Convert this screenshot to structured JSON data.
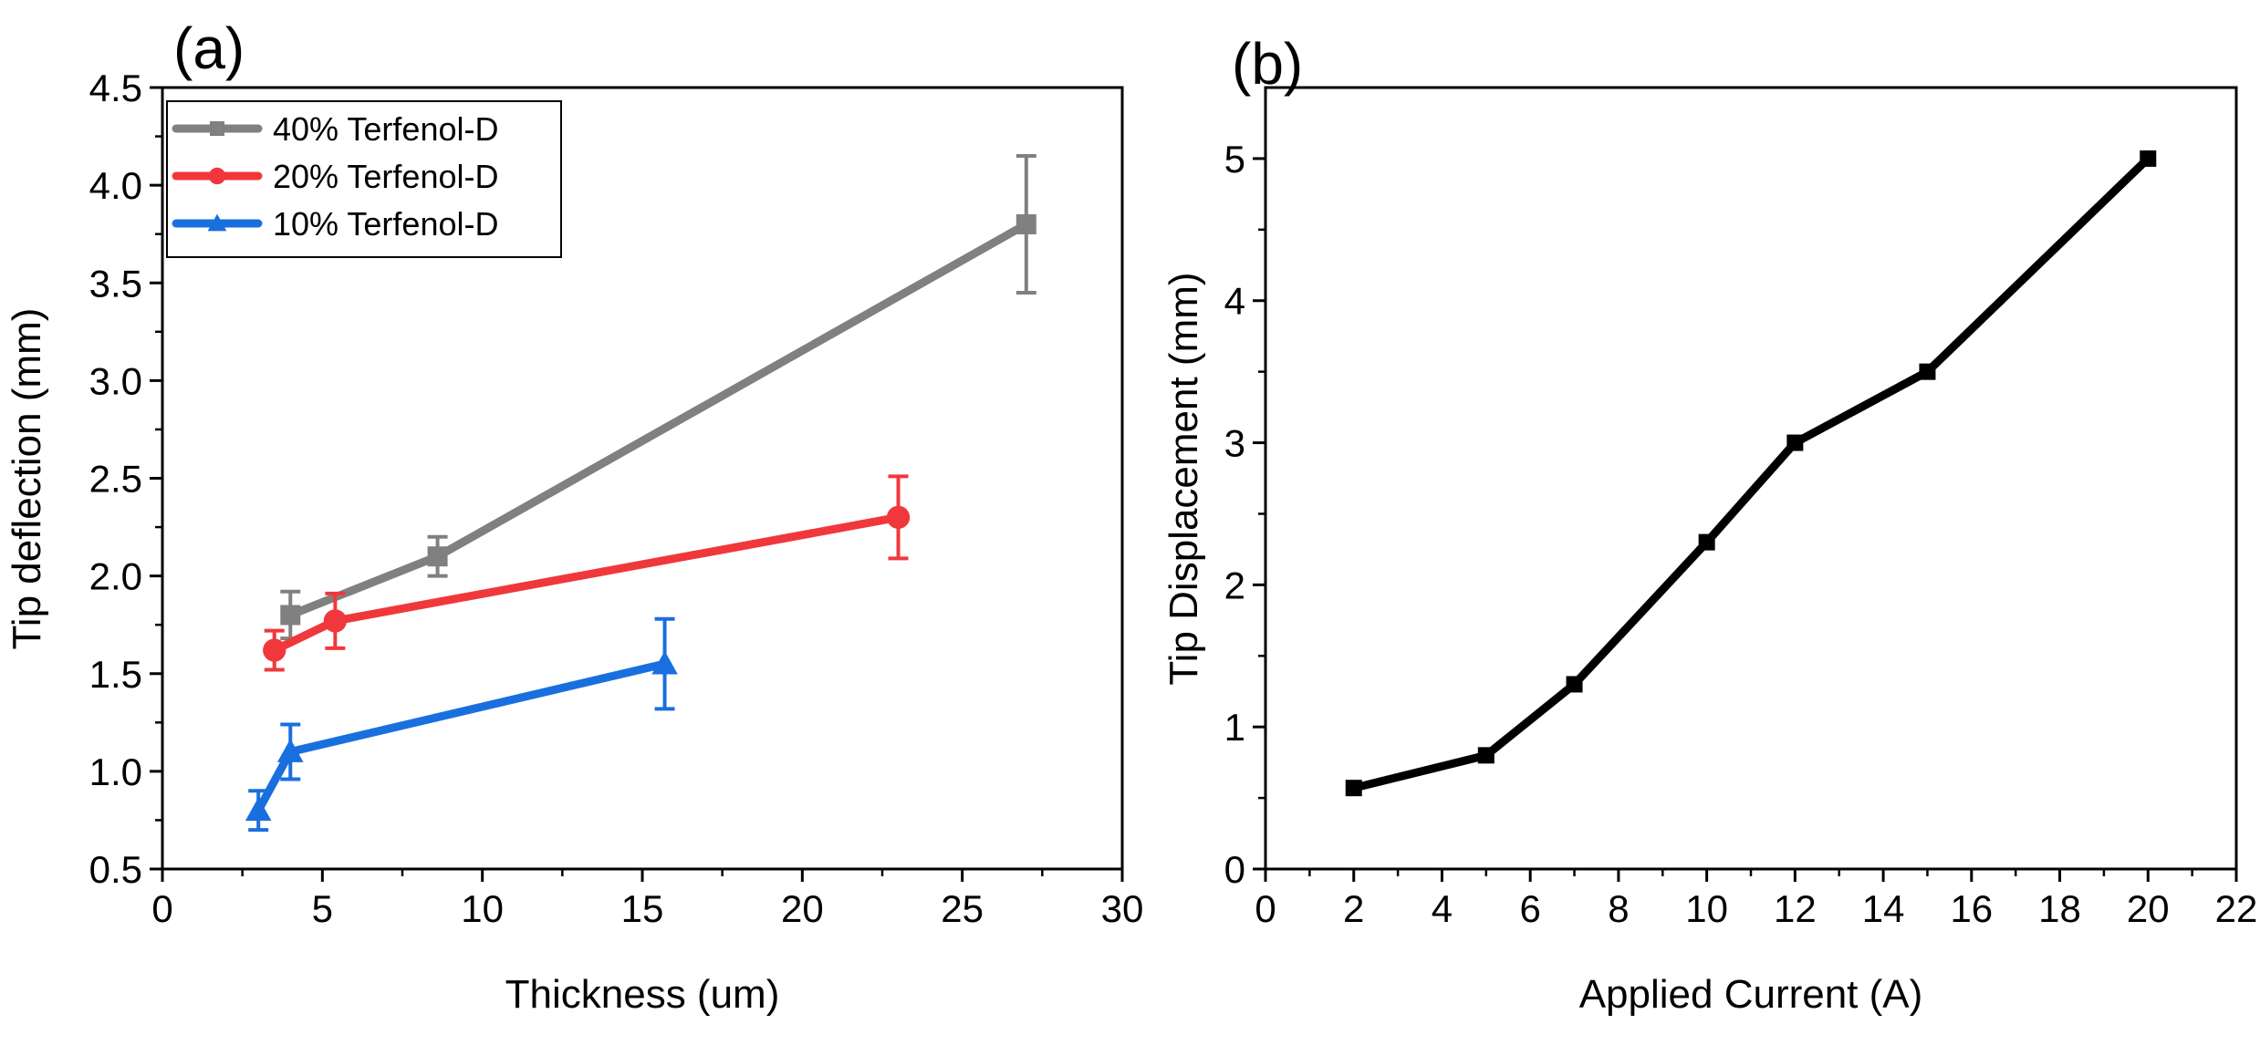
{
  "chart_data": [
    {
      "type": "line",
      "panel_label": "(a)",
      "title": "",
      "xlabel": "Thickness (um)",
      "ylabel": "Tip deflection (mm)",
      "xlim": [
        0,
        30
      ],
      "ylim": [
        0.5,
        4.5
      ],
      "xticks": [
        0,
        5,
        10,
        15,
        20,
        25,
        30
      ],
      "yticks": [
        0.5,
        1.0,
        1.5,
        2.0,
        2.5,
        3.0,
        3.5,
        4.0,
        4.5
      ],
      "ytick_labels": [
        "0.5",
        "1.0",
        "1.5",
        "2.0",
        "2.5",
        "3.0",
        "3.5",
        "4.0",
        "4.5"
      ],
      "grid": false,
      "legend_position": "top-left",
      "series": [
        {
          "name": "40% Terfenol-D",
          "color": "#808080",
          "marker": "square",
          "x": [
            4.0,
            8.6,
            27.0
          ],
          "y": [
            1.8,
            2.1,
            3.8
          ],
          "err": [
            0.12,
            0.1,
            0.35
          ]
        },
        {
          "name": "20% Terfenol-D",
          "color": "#f0383c",
          "marker": "circle",
          "x": [
            3.5,
            5.4,
            23.0
          ],
          "y": [
            1.62,
            1.77,
            2.3
          ],
          "err": [
            0.1,
            0.14,
            0.21
          ]
        },
        {
          "name": "10% Terfenol-D",
          "color": "#1a6fdf",
          "marker": "triangle",
          "x": [
            3.0,
            4.0,
            15.7
          ],
          "y": [
            0.8,
            1.1,
            1.55
          ],
          "err": [
            0.1,
            0.14,
            0.23
          ]
        }
      ]
    },
    {
      "type": "line",
      "panel_label": "(b)",
      "title": "",
      "xlabel": "Applied Current (A)",
      "ylabel": "Tip Displacement (mm)",
      "xlim": [
        0,
        22
      ],
      "ylim": [
        0,
        5.5
      ],
      "xticks": [
        0,
        2,
        4,
        6,
        8,
        10,
        12,
        14,
        16,
        18,
        20,
        22
      ],
      "yticks": [
        0,
        1,
        2,
        3,
        4,
        5
      ],
      "grid": false,
      "series": [
        {
          "name": "Tip Displacement",
          "color": "#000000",
          "marker": "square",
          "x": [
            2,
            5,
            7,
            10,
            12,
            15,
            20
          ],
          "y": [
            0.57,
            0.8,
            1.3,
            2.3,
            3.0,
            3.5,
            5.0
          ]
        }
      ]
    }
  ]
}
